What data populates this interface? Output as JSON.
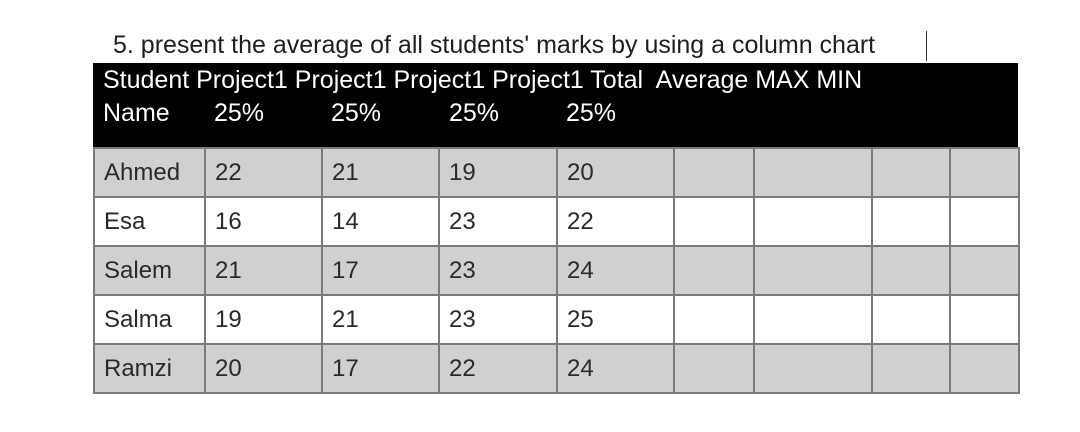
{
  "instruction": "5.  present the average of all students' marks by using a column chart",
  "header": {
    "line1": "Student Project1 Project1 Project1 Project1 Total  Average MAX MIN",
    "name_label": "Name",
    "weights": [
      "25%",
      "25%",
      "25%",
      "25%"
    ]
  },
  "rows": [
    {
      "name": "Ahmed",
      "marks": [
        "22",
        "21",
        "19",
        "20"
      ]
    },
    {
      "name": "Esa",
      "marks": [
        "16",
        "14",
        "23",
        "22"
      ]
    },
    {
      "name": "Salem",
      "marks": [
        "21",
        "17",
        "23",
        "24"
      ]
    },
    {
      "name": "Salma",
      "marks": [
        "19",
        "21",
        "23",
        "25"
      ]
    },
    {
      "name": "Ramzi",
      "marks": [
        "20",
        "17",
        "22",
        "24"
      ]
    }
  ],
  "colors": {
    "header_background": "#000000",
    "header_text": "#ffffff",
    "shaded_row": "#d0cfd2",
    "plain_row": "#ffffff",
    "grid_line": "#7a7a7a"
  }
}
